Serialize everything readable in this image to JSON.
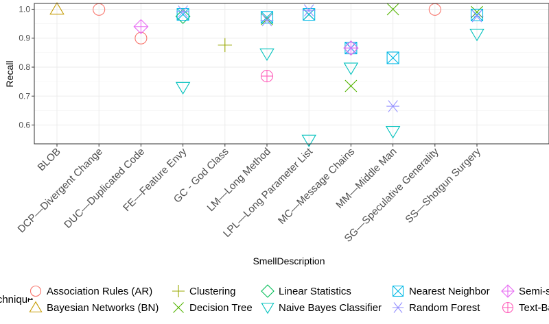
{
  "chart_data": {
    "type": "scatter",
    "xlabel": "SmellDescription",
    "ylabel": "Recall",
    "ylim": [
      0.535,
      1.02
    ],
    "yticks": [
      "0.6",
      "0.7",
      "0.8",
      "0.9",
      "1.0"
    ],
    "categories": [
      "BLOB",
      "DCP—Divergent Change",
      "DUC—Duplicated Code",
      "FE—Feature Envy",
      "GC - God Class",
      "LM—Long Method",
      "LPL—Long Parameter List",
      "MC—Message Chains",
      "MM—Middle Man",
      "SG—Speculative Generality",
      "SS—Shotgun Surgery"
    ],
    "grid": true,
    "legend": {
      "title": "Technique",
      "position": "bottom"
    },
    "series": [
      {
        "name": "Association Rules (AR)",
        "color": "#F8766D",
        "shape": "circle",
        "points": [
          {
            "x": "DCP—Divergent Change",
            "y": 0.999
          },
          {
            "x": "DUC—Duplicated Code",
            "y": 0.9
          },
          {
            "x": "SG—Speculative Generality",
            "y": 0.999
          }
        ]
      },
      {
        "name": "Bayesian Networks (BN)",
        "color": "#C49A00",
        "shape": "triangle-up",
        "points": [
          {
            "x": "BLOB",
            "y": 1.0
          }
        ]
      },
      {
        "name": "Clustering",
        "color": "#99A800",
        "shape": "plus",
        "points": [
          {
            "x": "GC - God Class",
            "y": 0.876
          }
        ]
      },
      {
        "name": "Decision Tree",
        "color": "#53B400",
        "shape": "cross",
        "points": [
          {
            "x": "LM—Long Method",
            "y": 0.966
          },
          {
            "x": "LPL—Long Parameter List",
            "y": 0.982
          },
          {
            "x": "MC—Message Chains",
            "y": 0.735
          },
          {
            "x": "MM—Middle Man",
            "y": 1.0
          },
          {
            "x": "SS—Shotgun Surgery",
            "y": 0.99
          }
        ]
      },
      {
        "name": "Linear Statistics",
        "color": "#00BC56",
        "shape": "diamond",
        "points": [
          {
            "x": "FE—Feature Envy",
            "y": 0.975
          },
          {
            "x": "MC—Message Chains",
            "y": 0.866
          }
        ]
      },
      {
        "name": "Naive Bayes Classifier",
        "color": "#00C1BD",
        "shape": "triangle-down",
        "points": [
          {
            "x": "FE—Feature Envy",
            "y": 0.73
          },
          {
            "x": "LM—Long Method",
            "y": 0.846
          },
          {
            "x": "LPL—Long Parameter List",
            "y": 0.548
          },
          {
            "x": "MC—Message Chains",
            "y": 0.797
          },
          {
            "x": "MM—Middle Man",
            "y": 0.578
          },
          {
            "x": "SS—Shotgun Surgery",
            "y": 0.914
          }
        ]
      },
      {
        "name": "Nearest Neighbor",
        "color": "#00B8E5",
        "shape": "square-x",
        "points": [
          {
            "x": "FE—Feature Envy",
            "y": 0.982
          },
          {
            "x": "LM—Long Method",
            "y": 0.972
          },
          {
            "x": "LPL—Long Parameter List",
            "y": 0.982
          },
          {
            "x": "MC—Message Chains",
            "y": 0.866
          },
          {
            "x": "MM—Middle Man",
            "y": 0.832
          },
          {
            "x": "SS—Shotgun Surgery",
            "y": 0.98
          }
        ]
      },
      {
        "name": "Random Forest",
        "color": "#9590FF",
        "shape": "asterisk",
        "points": [
          {
            "x": "FE—Feature Envy",
            "y": 0.992
          },
          {
            "x": "LM—Long Method",
            "y": 0.962
          },
          {
            "x": "LPL—Long Parameter List",
            "y": 0.996
          },
          {
            "x": "MC—Message Chains",
            "y": 0.866
          },
          {
            "x": "MM—Middle Man",
            "y": 0.665
          },
          {
            "x": "SS—Shotgun Surgery",
            "y": 0.976
          }
        ]
      },
      {
        "name": "Semi-supervised",
        "color": "#E76BF3",
        "shape": "diamond-plus",
        "points": [
          {
            "x": "DUC—Duplicated Code",
            "y": 0.94
          },
          {
            "x": "MC—Message Chains",
            "y": 0.866
          }
        ]
      },
      {
        "name": "Text-Based",
        "color": "#FF62BC",
        "shape": "circle-plus",
        "points": [
          {
            "x": "LM—Long Method",
            "y": 0.769
          }
        ]
      }
    ]
  }
}
